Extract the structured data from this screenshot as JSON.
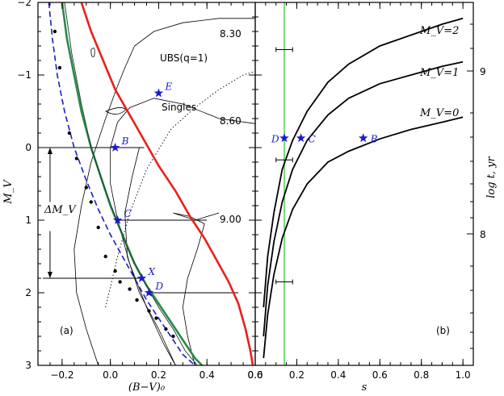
{
  "chart_data": [
    {
      "type": "line",
      "panel": "(a)",
      "xlabel": "(B−V)₀",
      "ylabel": "M_V",
      "xlim": [
        -0.3,
        0.6
      ],
      "ylim": [
        3,
        -2
      ],
      "xticks": [
        "−0.2",
        "0.0",
        "0.2",
        "0.4",
        "0.6"
      ],
      "xtick_values": [
        -0.2,
        0,
        0.2,
        0.4,
        0.6
      ],
      "yticks": [
        "−2",
        "−1",
        "0",
        "1",
        "2",
        "3"
      ],
      "ytick_values": [
        -2,
        -1,
        0,
        1,
        2,
        3
      ],
      "isochrones_label": [
        "8.30",
        "8.60",
        "9.00"
      ],
      "annotations": [
        "UBS(q=1)",
        "Singles",
        "ΔM_V"
      ],
      "colors": {
        "red": "#e8201c",
        "green": "#2a8a4a",
        "blue": "#1a1acc"
      },
      "series": [
        {
          "color": "red",
          "x": [
            -0.12,
            -0.08,
            -0.03,
            0.02,
            0.08,
            0.14,
            0.2,
            0.27,
            0.33,
            0.39,
            0.44,
            0.49,
            0.53,
            0.56,
            0.58,
            0.59
          ],
          "y": [
            -2.0,
            -1.6,
            -1.2,
            -0.8,
            -0.45,
            -0.1,
            0.25,
            0.6,
            0.95,
            1.25,
            1.55,
            1.85,
            2.15,
            2.5,
            2.8,
            3.0
          ]
        },
        {
          "color": "green",
          "x": [
            -0.2,
            -0.18,
            -0.15,
            -0.12,
            -0.08,
            -0.04,
            0.0,
            0.05,
            0.1,
            0.15,
            0.2,
            0.25,
            0.3,
            0.35,
            0.38
          ],
          "y": [
            -2.0,
            -1.5,
            -1.0,
            -0.5,
            0.0,
            0.4,
            0.8,
            1.2,
            1.6,
            1.9,
            2.15,
            2.4,
            2.65,
            2.9,
            3.0
          ]
        },
        {
          "color": "blue",
          "style": "dashed",
          "x": [
            -0.255,
            -0.24,
            -0.22,
            -0.19,
            -0.15,
            -0.1,
            -0.05,
            0.0,
            0.05,
            0.1,
            0.15,
            0.2,
            0.25,
            0.3,
            0.35
          ],
          "y": [
            -2.0,
            -1.5,
            -1.0,
            -0.5,
            0.0,
            0.45,
            0.85,
            1.2,
            1.5,
            1.8,
            2.1,
            2.35,
            2.6,
            2.85,
            3.0
          ]
        },
        {
          "color": "black",
          "style": "dots",
          "x": [
            -0.23,
            -0.21,
            -0.17,
            -0.14,
            -0.1,
            -0.08,
            -0.05,
            -0.02,
            0.02,
            0.04,
            0.08,
            0.11,
            0.16,
            0.19,
            0.23,
            0.26
          ],
          "y": [
            -1.6,
            -1.1,
            -0.2,
            0.15,
            0.55,
            0.75,
            1.1,
            1.5,
            1.7,
            1.85,
            1.95,
            2.1,
            2.25,
            2.35,
            2.5,
            2.6
          ]
        }
      ],
      "points": [
        {
          "label": "E",
          "x": 0.2,
          "y": -0.75
        },
        {
          "label": "B",
          "x": 0.02,
          "y": 0.0
        },
        {
          "label": "C",
          "x": 0.03,
          "y": 1.0
        },
        {
          "label": "X",
          "x": 0.13,
          "y": 1.8
        },
        {
          "label": "D",
          "x": 0.16,
          "y": 2.0
        }
      ],
      "hlines": [
        {
          "y": 0.0,
          "x0": -0.28,
          "x1": 0.14
        },
        {
          "y": 1.0,
          "x0": 0.03,
          "x1": 0.4
        },
        {
          "y": 1.8,
          "x0": -0.28,
          "x1": 0.13
        },
        {
          "y": 2.0,
          "x0": 0.16,
          "x1": 0.53
        }
      ]
    },
    {
      "type": "line",
      "panel": "(b)",
      "xlabel": "s",
      "ylabel": "log t, yr",
      "xlim": [
        0.0,
        1.05
      ],
      "ylim_left": [
        3,
        -2
      ],
      "xticks": [
        "0.0",
        "0.2",
        "0.4",
        "0.6",
        "0.8",
        "1.0"
      ],
      "xtick_values": [
        0,
        0.2,
        0.4,
        0.6,
        0.8,
        1.0
      ],
      "right_yticks": [
        "8",
        "9"
      ],
      "series": [
        {
          "name": "M_V=2",
          "x": [
            0.04,
            0.06,
            0.09,
            0.13,
            0.18,
            0.25,
            0.35,
            0.45,
            0.6,
            0.75,
            0.9,
            1.0
          ],
          "y": [
            2.2,
            1.5,
            0.9,
            0.3,
            -0.1,
            -0.5,
            -0.9,
            -1.15,
            -1.4,
            -1.55,
            -1.7,
            -1.78
          ]
        },
        {
          "name": "M_V=1",
          "x": [
            0.04,
            0.06,
            0.09,
            0.13,
            0.18,
            0.25,
            0.35,
            0.45,
            0.6,
            0.75,
            0.9,
            1.0
          ],
          "y": [
            2.6,
            1.9,
            1.3,
            0.75,
            0.3,
            -0.1,
            -0.45,
            -0.68,
            -0.88,
            -1.0,
            -1.12,
            -1.18
          ]
        },
        {
          "name": "M_V=0",
          "x": [
            0.04,
            0.06,
            0.09,
            0.13,
            0.18,
            0.25,
            0.35,
            0.45,
            0.6,
            0.75,
            0.9,
            1.0
          ],
          "y": [
            2.9,
            2.3,
            1.75,
            1.25,
            0.85,
            0.5,
            0.2,
            0.05,
            -0.12,
            -0.25,
            -0.35,
            -0.42
          ]
        }
      ],
      "vline": {
        "x": 0.14,
        "color": "#44cc44"
      },
      "errorbars": [
        {
          "x": 0.14,
          "y": -1.35,
          "xerr": 0.04
        },
        {
          "x": 0.14,
          "y": 0.17,
          "xerr": 0.04
        },
        {
          "x": 0.14,
          "y": 1.85,
          "xerr": 0.04
        }
      ],
      "points": [
        {
          "label": "D",
          "x": 0.14,
          "y": -0.13
        },
        {
          "label": "C",
          "x": 0.22,
          "y": -0.13
        },
        {
          "label": "B",
          "x": 0.52,
          "y": -0.13
        }
      ]
    }
  ]
}
